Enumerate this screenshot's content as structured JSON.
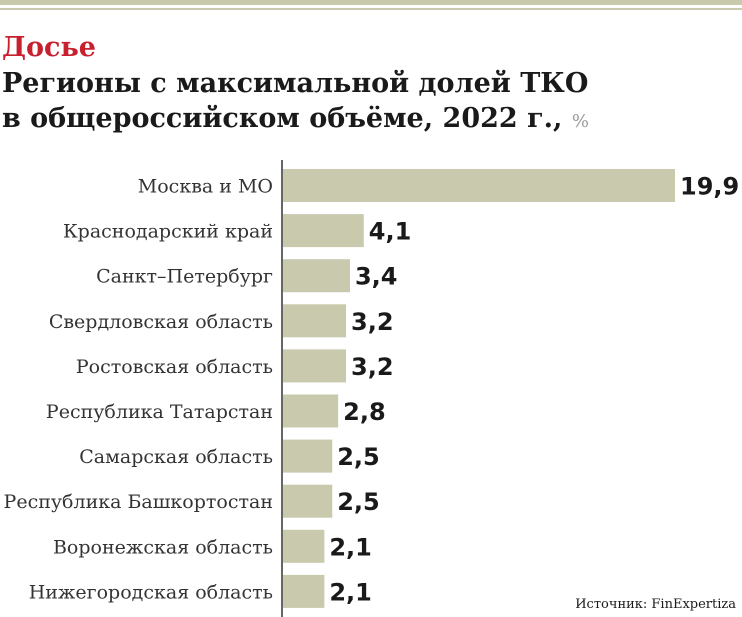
{
  "header": {
    "kicker": "Досье",
    "title_line1": "Регионы с максимальной долей ТКО",
    "title_line2": "в общероссийском объёме, 2022 г.,",
    "unit": "%"
  },
  "source": "Источник: FinExpertiza",
  "colors": {
    "bar": "#c9c9ae",
    "kicker": "#c8202f",
    "axis": "#333333"
  },
  "chart_data": {
    "type": "bar",
    "orientation": "horizontal",
    "title": "Регионы с максимальной долей ТКО в общероссийском объёме, 2022 г., %",
    "categories": [
      "Москва и МО",
      "Краснодарский край",
      "Санкт–Петербург",
      "Свердловская область",
      "Ростовская область",
      "Республика Татарстан",
      "Самарская область",
      "Республика Башкортостан",
      "Воронежская область",
      "Нижегородская область"
    ],
    "values": [
      19.9,
      4.1,
      3.4,
      3.2,
      3.2,
      2.8,
      2.5,
      2.5,
      2.1,
      2.1
    ],
    "value_labels": [
      "19,9",
      "4,1",
      "3,4",
      "3,2",
      "3,2",
      "2,8",
      "2,5",
      "2,5",
      "2,1",
      "2,1"
    ],
    "xlim": [
      0,
      19.9
    ],
    "grid": false,
    "legend": "none"
  }
}
